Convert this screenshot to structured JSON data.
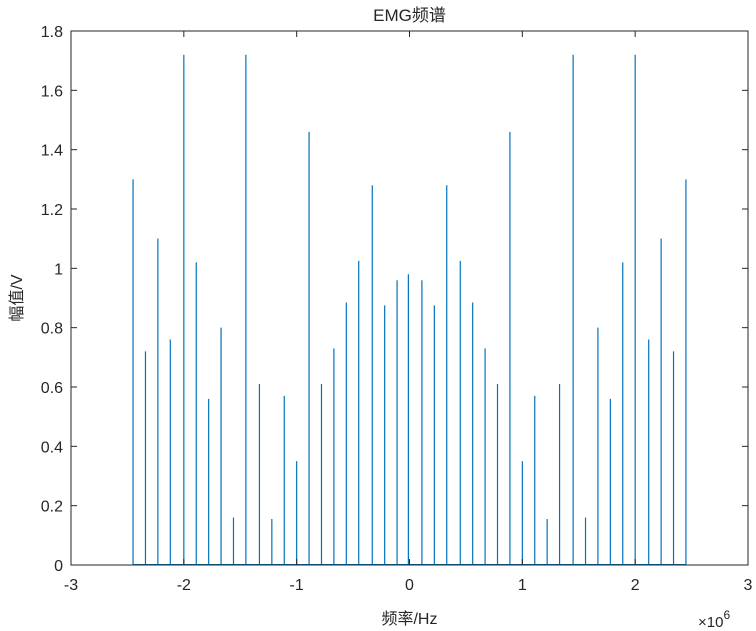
{
  "chart_data": {
    "type": "bar",
    "title": "EMG频谱",
    "xlabel": "频率/Hz",
    "ylabel": "幅值/V",
    "x_exponent_label": "×10",
    "x_exponent_power": "6",
    "xlim": [
      -3,
      3
    ],
    "ylim": [
      0,
      1.8
    ],
    "xticks": [
      -3,
      -2,
      -1,
      0,
      1,
      2,
      3
    ],
    "yticks": [
      0,
      0.2,
      0.4,
      0.6,
      0.8,
      1,
      1.2,
      1.4,
      1.6,
      1.8
    ],
    "grid": false,
    "line_color": "#0072BD",
    "series": [
      {
        "x": [
          -2.45,
          -2.34,
          -2.23,
          -2.12,
          -2.0,
          -1.89,
          -1.78,
          -1.67,
          -1.56,
          -1.45,
          -1.33,
          -1.22,
          -1.11,
          -1.0,
          -0.89,
          -0.78,
          -0.67,
          -0.56,
          -0.45,
          -0.33,
          -0.22,
          -0.11,
          -0.01,
          0.11,
          0.22,
          0.33,
          0.45,
          0.56,
          0.67,
          0.78,
          0.89,
          1.0,
          1.11,
          1.22,
          1.33,
          1.45,
          1.56,
          1.67,
          1.78,
          1.89,
          2.0,
          2.12,
          2.23,
          2.34,
          2.45
        ],
        "values": [
          1.3,
          0.72,
          1.1,
          0.76,
          1.72,
          1.02,
          0.56,
          0.8,
          0.16,
          1.72,
          0.61,
          0.155,
          0.57,
          0.35,
          1.46,
          0.61,
          0.73,
          0.885,
          1.025,
          1.28,
          0.875,
          0.96,
          0.98,
          0.96,
          0.875,
          1.28,
          1.025,
          0.885,
          0.73,
          0.61,
          1.46,
          0.35,
          0.57,
          0.155,
          0.61,
          1.72,
          0.16,
          0.8,
          0.56,
          1.02,
          1.72,
          0.76,
          1.1,
          0.72,
          1.3
        ]
      }
    ]
  }
}
